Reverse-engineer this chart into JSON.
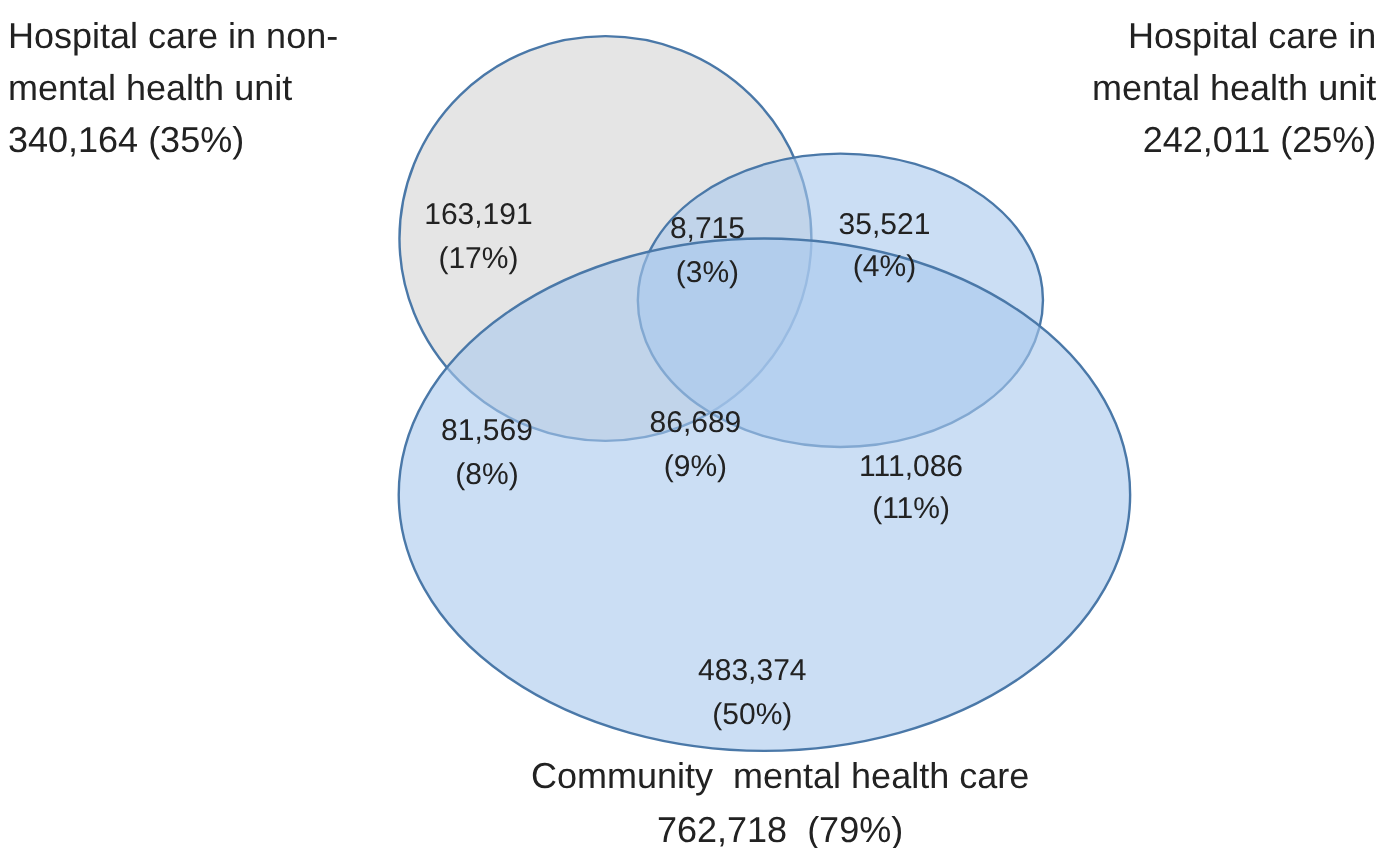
{
  "chart_data": {
    "type": "other",
    "categories": [
      "Hospital care in non-\nmental health unit",
      "Hospital care in\nmental health unit",
      "Community  mental health care"
    ],
    "values": [
      340164,
      242011,
      762718
    ],
    "value_labels": [
      "340,164 (35%)",
      "242,011 (25%)",
      "762,718  (79%)"
    ],
    "colors": [
      "#d4d4d4",
      "#a8c8ec",
      "#a8c8ec"
    ],
    "annotations": [
      "163,191\n(17%)",
      "8,715\n(3%)",
      "35,521\n(4%)",
      "81,569\n(8%)",
      "86,689\n(9%)",
      "111,086\n(11%)",
      "483,374\n(50%)"
    ]
  }
}
